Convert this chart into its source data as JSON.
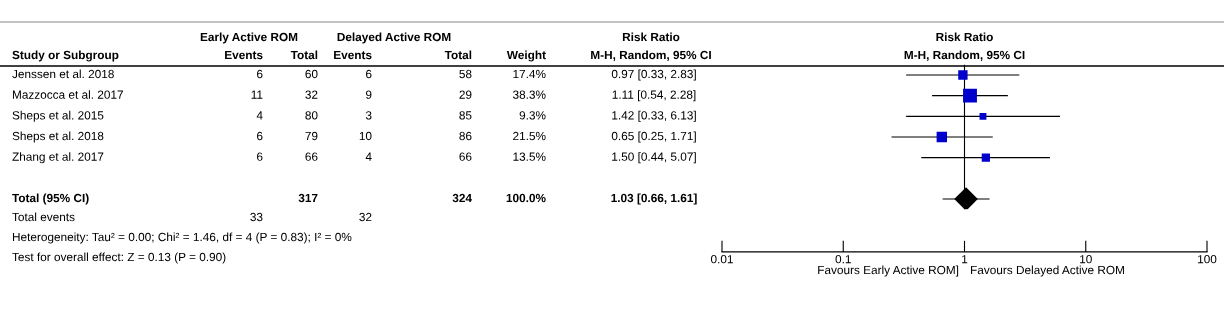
{
  "chart_data": [
    {
      "type": "other",
      "annotations": [
        "Early Active ROM",
        "Delayed Active ROM",
        "Risk Ratio",
        "Study or Subgroup",
        "Events",
        "Total",
        "Events",
        "Total",
        "Weight",
        "M-H, Random, 95% CI",
        "Jenssen et al. 2018",
        "6",
        "60",
        "6",
        "58",
        "17.4%",
        "0.97 [0.33, 2.83]",
        "Mazzocca et al. 2017",
        "11",
        "32",
        "9",
        "29",
        "38.3%",
        "1.11 [0.54, 2.28]",
        "Sheps et al. 2015",
        "4",
        "80",
        "3",
        "85",
        "9.3%",
        "1.42 [0.33, 6.13]",
        "Sheps et al. 2018",
        "6",
        "79",
        "10",
        "86",
        "21.5%",
        "0.65 [0.25, 1.71]",
        "Zhang et al. 2017",
        "6",
        "66",
        "4",
        "66",
        "13.5%",
        "1.50 [0.44, 5.07]",
        "Total (95% CI)",
        "317",
        "324",
        "100.0%",
        "1.03 [0.66, 1.61]",
        "Total events",
        "33",
        "32",
        "Heterogeneity: Tau² = 0.00; Chi² = 1.46, df = 4 (P = 0.83); I² = 0%",
        "Test for overall effect: Z = 0.13 (P = 0.90)"
      ]
    },
    {
      "type": "scatter",
      "orientation": "horizontal",
      "title": "Risk Ratio",
      "subtitle": "M-H, Random, 95% CI",
      "categories": [
        null,
        null,
        null,
        null,
        null,
        null,
        null
      ],
      "log": "x",
      "xlim": [
        0.01,
        100
      ],
      "xticks": [
        0.01,
        0.1,
        1,
        10,
        100
      ],
      "grid": false,
      "ref_lines": [
        {
          "axis": "x",
          "value": 1,
          "color": "#000000"
        }
      ],
      "annotations": [
        "Favours Early Active ROM]",
        "Favours Delayed Active ROM"
      ],
      "series": [
        {
          "color": "#0000cc",
          "marker": "square",
          "values": [
            0.97,
            1.11,
            1.42,
            0.65,
            1.5,
            null,
            null
          ],
          "errors": [
            [
              0.33,
              2.83
            ],
            [
              0.54,
              2.28
            ],
            [
              0.33,
              6.13
            ],
            [
              0.25,
              1.71
            ],
            [
              0.44,
              5.07
            ],
            null,
            null
          ],
          "sizes": [
            0.454,
            1,
            0.243,
            0.561,
            0.352,
            null,
            null
          ]
        },
        {
          "color": "#000000",
          "marker": "diamond",
          "values": [
            null,
            null,
            null,
            null,
            null,
            null,
            1.03
          ],
          "errors": [
            null,
            null,
            null,
            null,
            null,
            null,
            [
              0.66,
              1.61
            ]
          ]
        }
      ]
    }
  ]
}
